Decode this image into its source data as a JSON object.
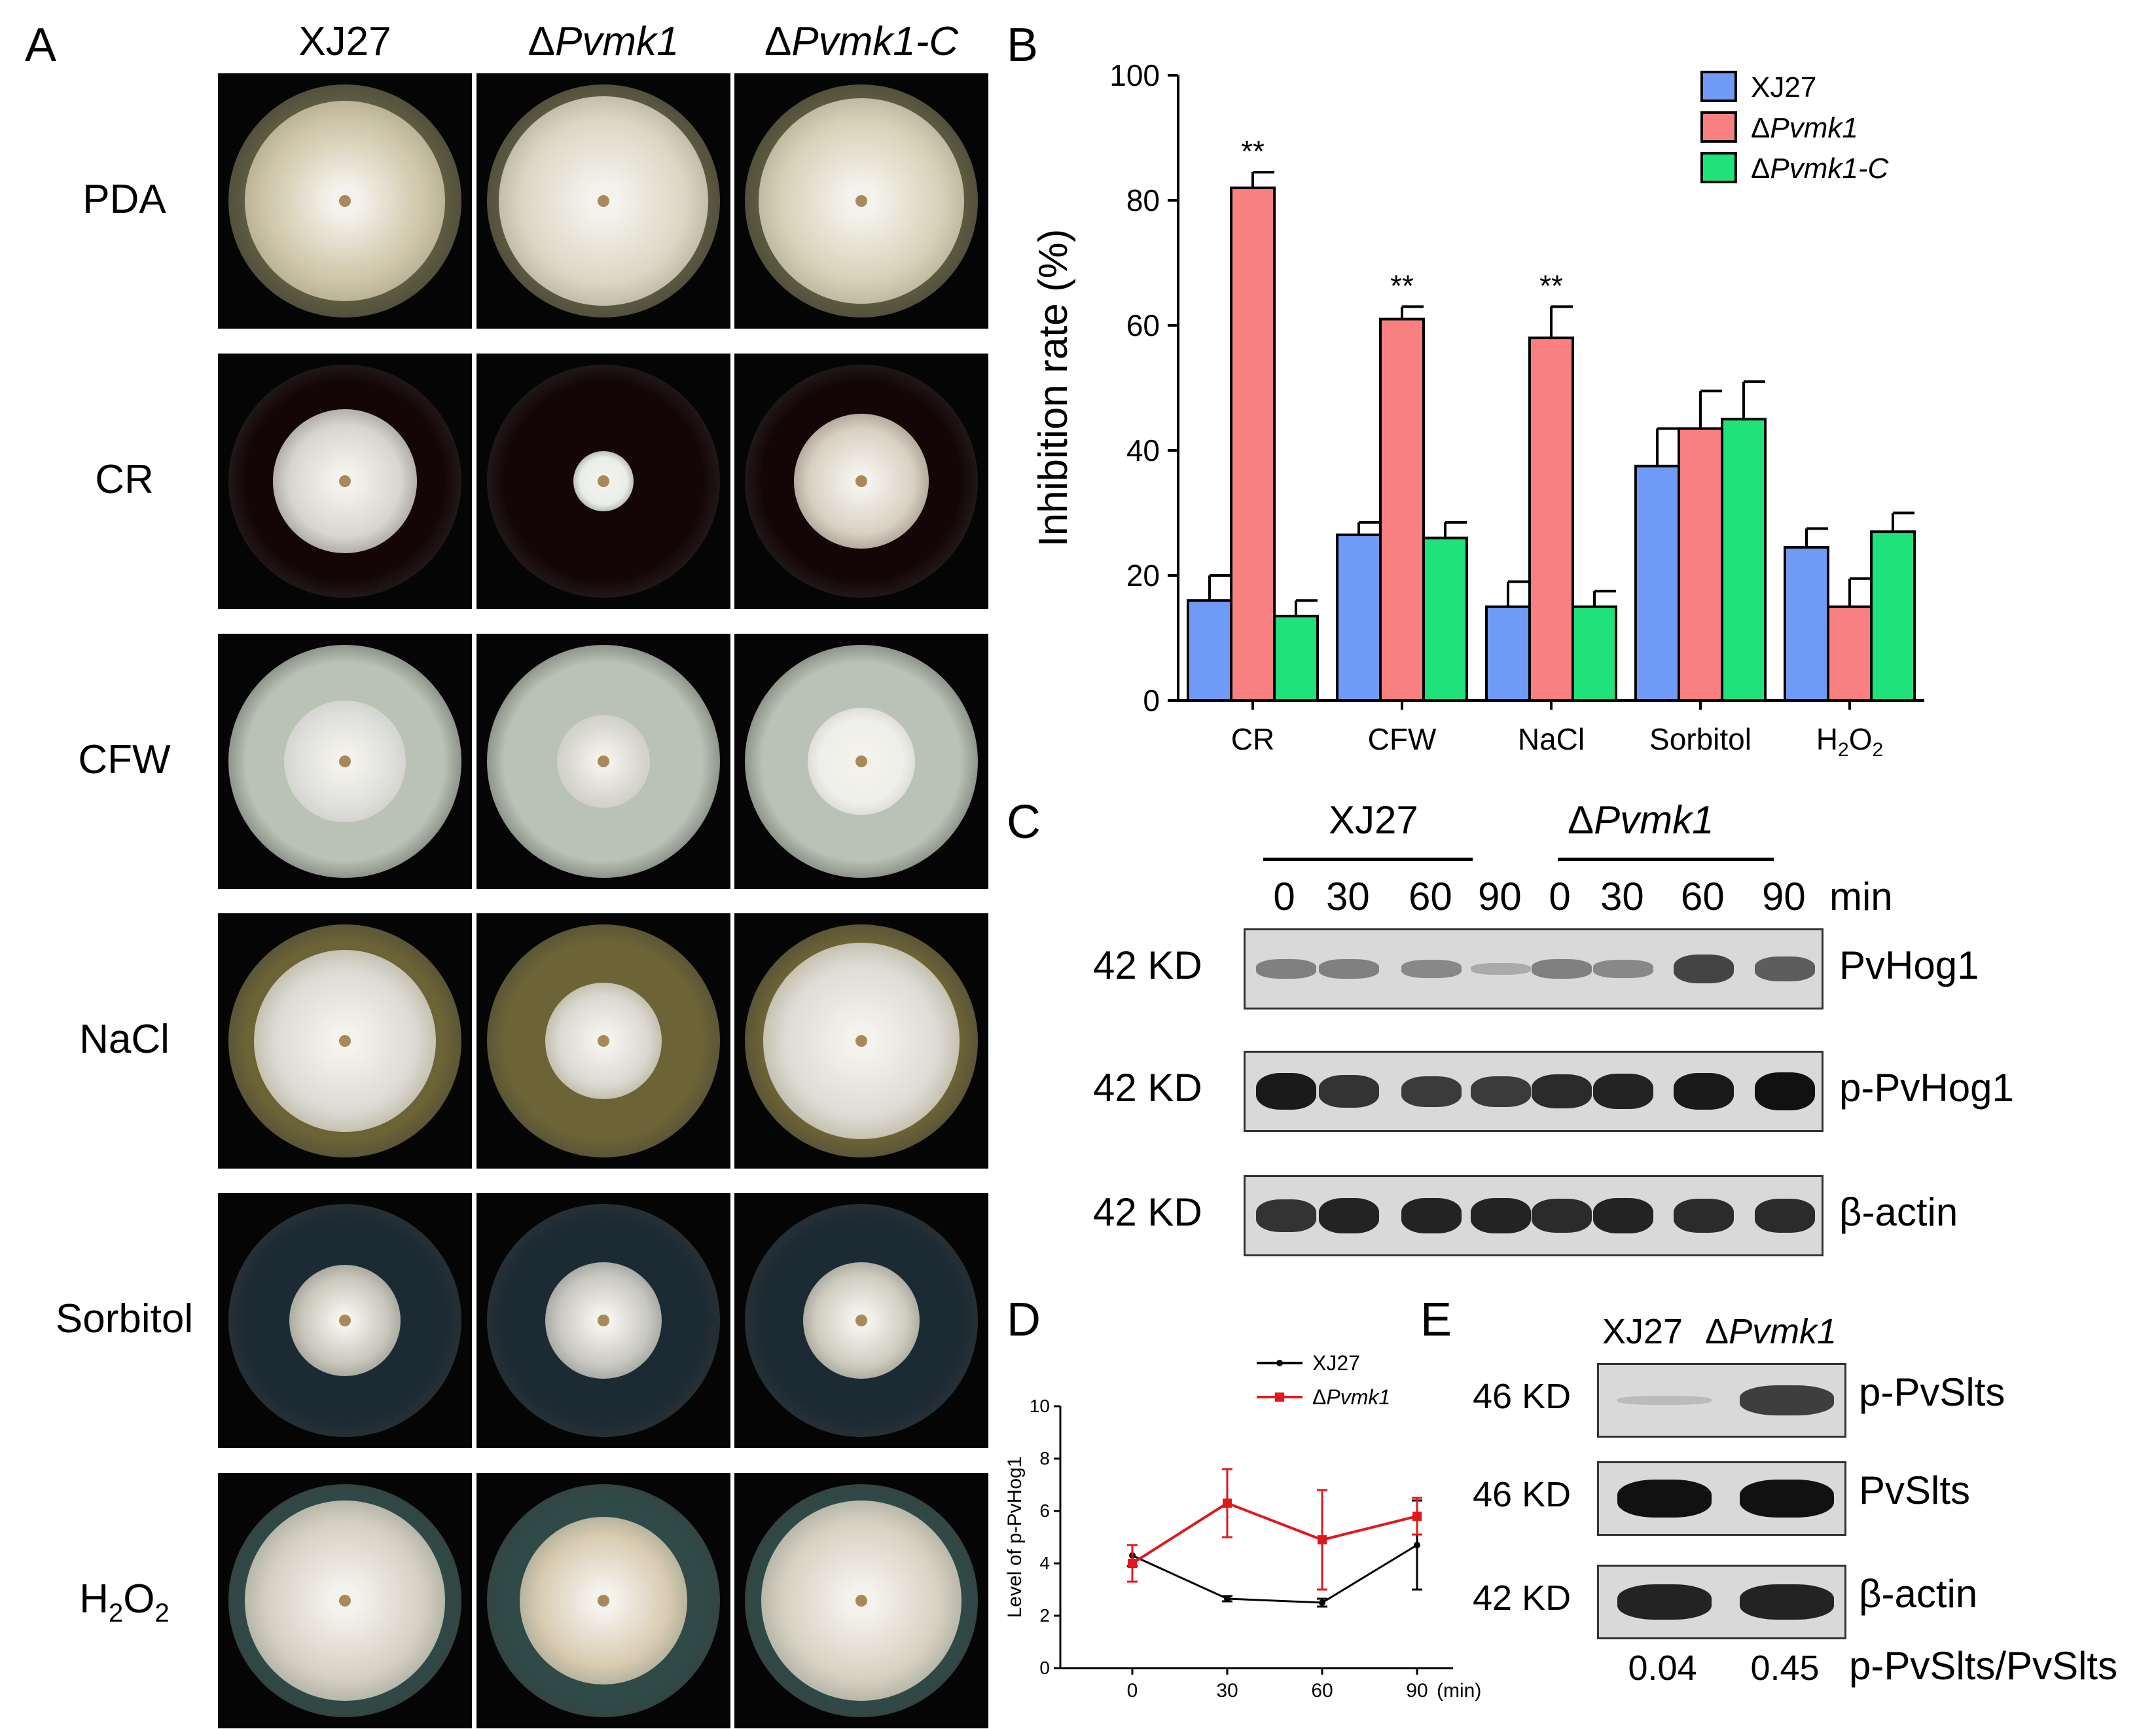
{
  "panel_labels": {
    "a": "A",
    "b": "B",
    "c": "C",
    "d": "D",
    "e": "E"
  },
  "panelA": {
    "columns": [
      {
        "prefix": "",
        "name": "XJ27",
        "italic": false
      },
      {
        "prefix": "Δ",
        "name": "Pvmk1",
        "italic": true
      },
      {
        "prefix": "Δ",
        "name": "Pvmk1-C",
        "italic": true
      }
    ],
    "rows": [
      {
        "label": "PDA"
      },
      {
        "label": "CR"
      },
      {
        "label": "CFW"
      },
      {
        "label": "NaCl"
      },
      {
        "label": "Sorbitol"
      },
      {
        "label": "H",
        "sub": "2",
        "label2": "O",
        "sub2": "2"
      }
    ],
    "plate_colors": {
      "PDA": {
        "dish": "#5f5c40",
        "colonies": [
          "#cfc7a8",
          "#dcd6c4",
          "#d8d1b8"
        ]
      },
      "CR": {
        "dish": "#140607",
        "colonies": [
          "#d7d5d0",
          "#e9eeea",
          "#d8d1c2"
        ]
      },
      "CFW": {
        "dish": "#b9c2b4",
        "colonies": [
          "#dedfdc",
          "#d8d8d0",
          "#eeeeea"
        ]
      },
      "NaCl": {
        "dish": "#6c6336",
        "colonies": [
          "#dcdad3",
          "#dad8d0",
          "#dddbd3"
        ]
      },
      "Sorbitol": {
        "dish": "#1c2a33",
        "colonies": [
          "#c9c6ba",
          "#c8c7c2",
          "#cfccbf"
        ]
      },
      "H2O2": {
        "dish": "#2f4a47",
        "colonies": [
          "#d6d0c3",
          "#d8cbb0",
          "#d8d1c2"
        ]
      }
    },
    "plate_sizes": {
      "PDA": [
        0.86,
        0.9,
        0.88
      ],
      "CR": [
        0.62,
        0.26,
        0.58
      ],
      "CFW": [
        0.52,
        0.4,
        0.46
      ],
      "NaCl": [
        0.78,
        0.5,
        0.84
      ],
      "Sorbitol": [
        0.48,
        0.5,
        0.5
      ],
      "H2O2": [
        0.86,
        0.72,
        0.86
      ]
    }
  },
  "chart_data": [
    {
      "type": "bar",
      "panel": "B",
      "categories": [
        "CR",
        "CFW",
        "NaCl",
        "Sorbitol",
        "H2O2"
      ],
      "category_labels": [
        {
          "t": "CR"
        },
        {
          "t": "CFW"
        },
        {
          "t": "NaCl"
        },
        {
          "t": "Sorbitol"
        },
        {
          "t": "H",
          "s": "2",
          "t2": "O",
          "s2": "2"
        }
      ],
      "ylabel": "Inhibition rate (%)",
      "ylim": [
        0,
        100
      ],
      "yticks": [
        0,
        20,
        40,
        60,
        80,
        100
      ],
      "series": [
        {
          "name": "XJ27",
          "color": "#6f9af5",
          "values": [
            16,
            26.5,
            15,
            37.5,
            24.5
          ],
          "errors": [
            4,
            2,
            4,
            6,
            3
          ]
        },
        {
          "name": "Pvmk1",
          "color": "#f88080",
          "values": [
            82,
            61,
            58,
            43.5,
            15
          ],
          "errors": [
            2.5,
            2,
            5,
            6,
            4.5
          ]
        },
        {
          "name": "Pvmk1-C",
          "color": "#1fe27a",
          "values": [
            13.5,
            26,
            15,
            45,
            27
          ],
          "errors": [
            2.5,
            2.5,
            2.5,
            6,
            3
          ]
        }
      ],
      "legend_entries": [
        {
          "prefix": "",
          "name": "XJ27",
          "italic": false
        },
        {
          "prefix": "Δ",
          "name": "Pvmk1",
          "italic": true
        },
        {
          "prefix": "Δ",
          "name": "Pvmk1-C",
          "italic": true
        }
      ],
      "annotations": [
        {
          "category": "CR",
          "series": "Pvmk1",
          "text": "**"
        },
        {
          "category": "CFW",
          "series": "Pvmk1",
          "text": "**"
        },
        {
          "category": "NaCl",
          "series": "Pvmk1",
          "text": "**"
        }
      ],
      "legend": "top-right",
      "grid": false
    },
    {
      "type": "line",
      "panel": "D",
      "x": [
        0,
        30,
        60,
        90
      ],
      "xticks": [
        "0",
        "30",
        "60",
        "90"
      ],
      "xunit": "(min)",
      "ylabel": "Level of p-PvHog1",
      "ylim": [
        0,
        10
      ],
      "yticks": [
        0,
        2,
        4,
        6,
        8,
        10
      ],
      "series": [
        {
          "name": "XJ27",
          "color": "#000000",
          "values": [
            4.3,
            2.65,
            2.5,
            4.7
          ],
          "errors": [
            0.4,
            0.1,
            0.15,
            1.7
          ]
        },
        {
          "name": "Pvmk1",
          "color": "#e3171b",
          "values": [
            4.0,
            6.3,
            4.9,
            5.8
          ],
          "errors": [
            0.7,
            1.3,
            1.9,
            0.7
          ]
        }
      ],
      "legend_entries": [
        {
          "prefix": "",
          "name": "XJ27",
          "italic": false
        },
        {
          "prefix": "Δ",
          "name": "Pvmk1",
          "italic": true
        }
      ],
      "legend": "top-right",
      "grid": false
    }
  ],
  "panelC": {
    "group1": "XJ27",
    "group2_prefix": "Δ",
    "group2": "Pvmk1",
    "times": [
      "0",
      "30",
      "60",
      "90",
      "0",
      "30",
      "60",
      "90"
    ],
    "time_unit": "min",
    "rows": [
      {
        "size": "42 KD",
        "label": "PvHog1",
        "intensity": [
          0.35,
          0.35,
          0.3,
          0.1,
          0.35,
          0.3,
          0.7,
          0.55
        ]
      },
      {
        "size": "42 KD",
        "label": "p-PvHog1",
        "intensity": [
          0.95,
          0.8,
          0.75,
          0.75,
          0.85,
          0.9,
          0.95,
          1.0
        ]
      },
      {
        "size": "42 KD",
        "label": "β-actin",
        "intensity": [
          0.8,
          0.9,
          0.9,
          0.9,
          0.85,
          0.9,
          0.85,
          0.85
        ]
      }
    ]
  },
  "panelE": {
    "col1": "XJ27",
    "col2_prefix": "Δ",
    "col2": "Pvmk1",
    "rows": [
      {
        "size": "46 KD",
        "label": "p-PvSlts",
        "intensity": [
          0.05,
          0.75
        ]
      },
      {
        "size": "46 KD",
        "label": "PvSlts",
        "intensity": [
          1.0,
          1.0
        ]
      },
      {
        "size": "42 KD",
        "label": "β-actin",
        "intensity": [
          0.9,
          0.9
        ]
      }
    ],
    "ratios": [
      "0.04",
      "0.45"
    ],
    "ratio_label": "p-PvSlts/PvSlts"
  }
}
